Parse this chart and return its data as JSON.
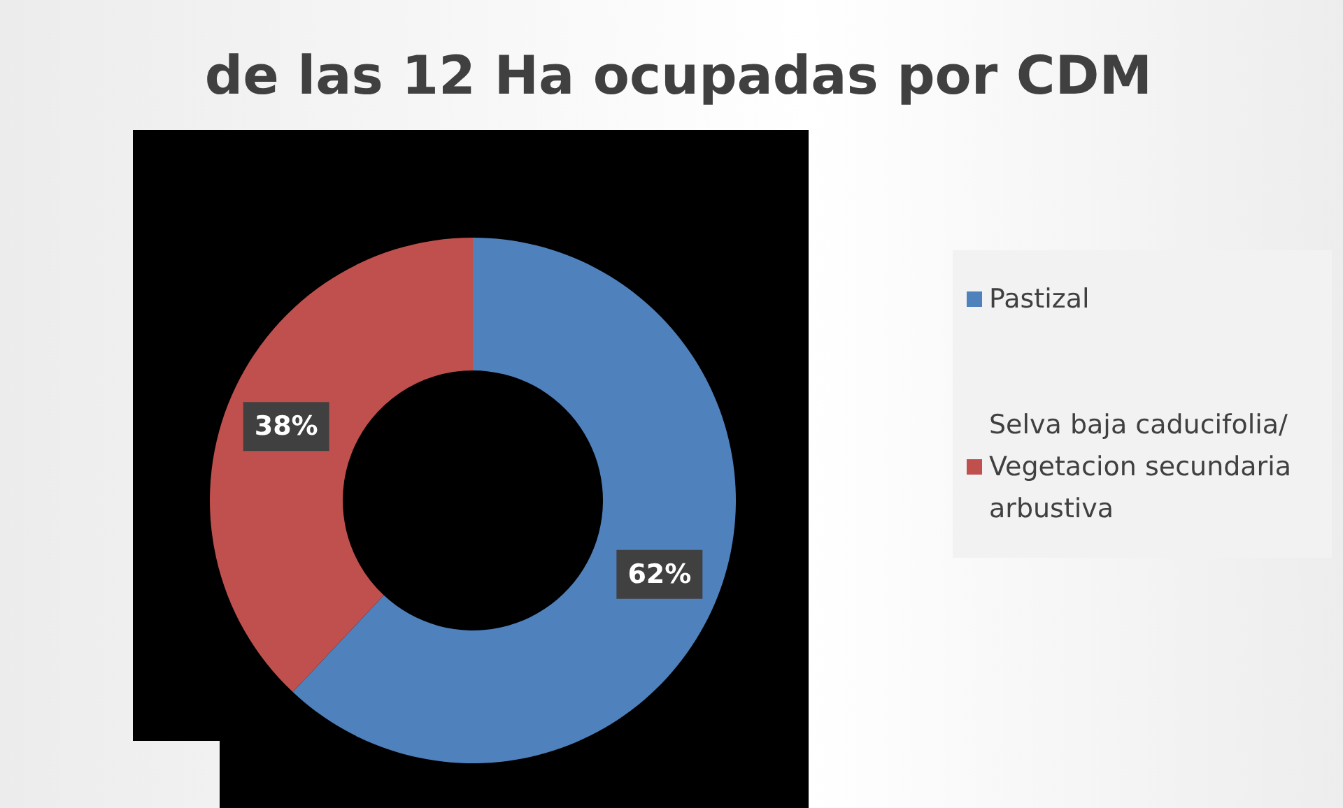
{
  "chart_data": {
    "type": "donut",
    "title": "de las 12 Ha ocupadas por CDM",
    "categories": [
      "Pastizal",
      "Selva baja caducifolia/Vegetacion secundaria arbustiva"
    ],
    "values": [
      62,
      38
    ],
    "colors": [
      "#4f81bd",
      "#c0504d"
    ],
    "value_labels": [
      "62%",
      "38%"
    ],
    "legend": "right"
  }
}
